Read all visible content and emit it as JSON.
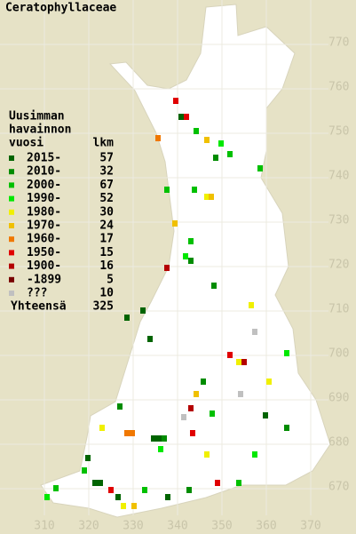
{
  "title": "Ceratophyllaceae",
  "legend": {
    "heading": [
      "Uusimman",
      "havainnon",
      "vuosi"
    ],
    "count_heading": "lkm",
    "entries": [
      {
        "label": "2015-",
        "count": 57,
        "color": "#006400"
      },
      {
        "label": "2010-",
        "count": 32,
        "color": "#008c00"
      },
      {
        "label": "2000-",
        "count": 67,
        "color": "#00c000"
      },
      {
        "label": "1990-",
        "count": 52,
        "color": "#00e800"
      },
      {
        "label": "1980-",
        "count": 30,
        "color": "#f0f000"
      },
      {
        "label": "1970-",
        "count": 24,
        "color": "#f0c000"
      },
      {
        "label": "1960-",
        "count": 17,
        "color": "#f07800"
      },
      {
        "label": "1950-",
        "count": 15,
        "color": "#e00000"
      },
      {
        "label": "1900-",
        "count": 16,
        "color": "#b40000"
      },
      {
        "label": "-1899",
        "count": 5,
        "color": "#780000"
      },
      {
        "label": "???",
        "count": 10,
        "color": "#c0c0c0"
      }
    ],
    "total_label": "Yhteensä",
    "total": 325
  },
  "map": {
    "x_ticks": [
      310,
      320,
      330,
      340,
      350,
      360,
      370
    ],
    "y_ticks": [
      670,
      680,
      690,
      700,
      710,
      720,
      730,
      740,
      750,
      760,
      770
    ]
  }
}
